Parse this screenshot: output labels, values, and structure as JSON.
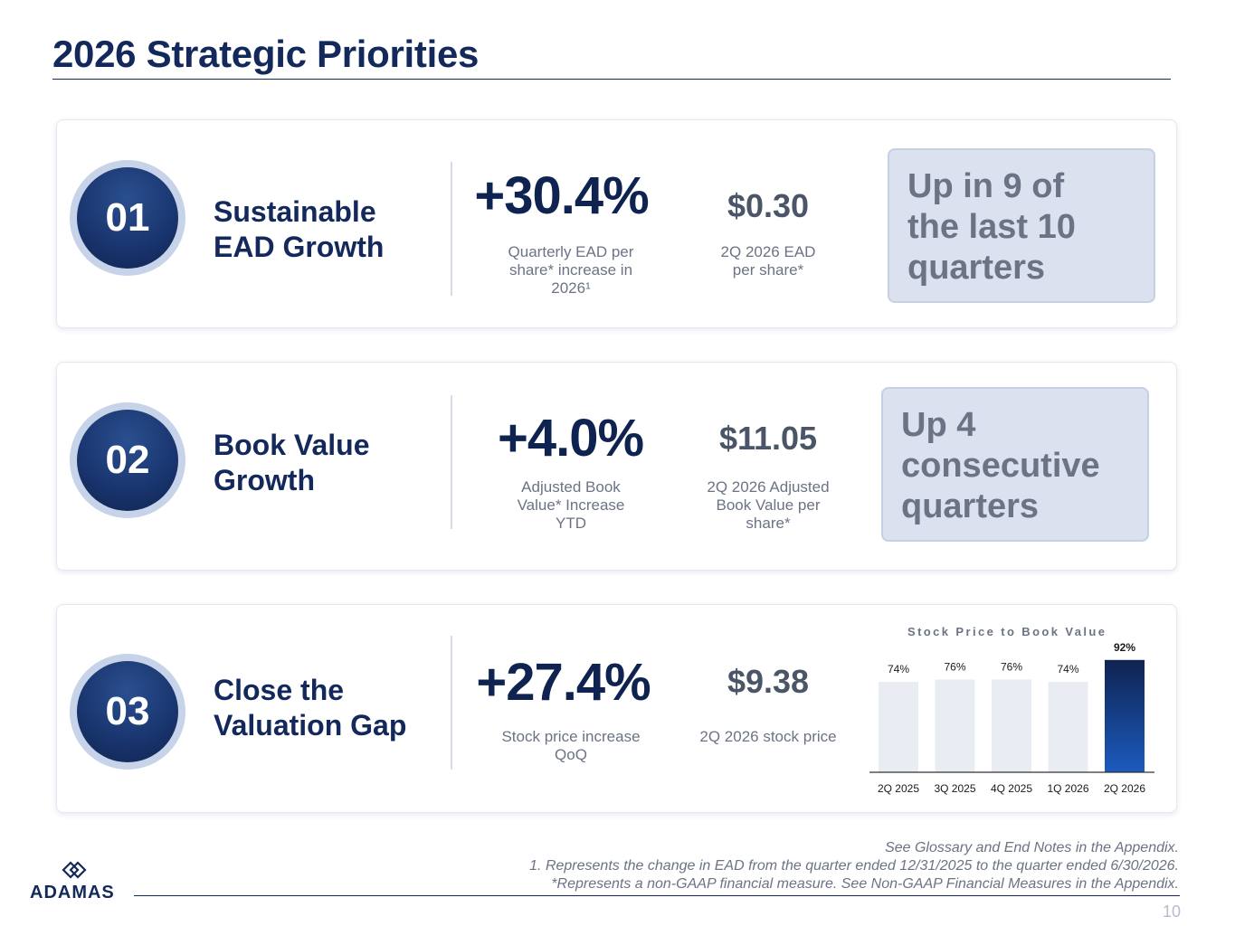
{
  "page": {
    "title": "2026 Strategic Priorities",
    "page_number": "10"
  },
  "priorities": [
    {
      "number": "01",
      "heading": "Sustainable\nEAD Growth",
      "metric1": {
        "value": "+30.4%",
        "caption": "Quarterly EAD per\nshare* increase in\n2026¹"
      },
      "metric2": {
        "value": "$0.30",
        "caption": "2Q 2026 EAD\nper share*"
      },
      "callout": "Up in 9 of\nthe last 10\nquarters"
    },
    {
      "number": "02",
      "heading": "Book Value\nGrowth",
      "metric1": {
        "value": "+4.0%",
        "caption": "Adjusted Book\nValue* Increase\nYTD"
      },
      "metric2": {
        "value": "$11.05",
        "caption": "2Q 2026 Adjusted\nBook Value per\nshare*"
      },
      "callout": "Up 4\nconsecutive\nquarters"
    },
    {
      "number": "03",
      "heading": "Close the\nValuation Gap",
      "metric1": {
        "value": "+27.4%",
        "caption": "Stock price increase\nQoQ"
      },
      "metric2": {
        "value": "$9.38",
        "caption": "2Q 2026 stock price"
      }
    }
  ],
  "chart_data": {
    "type": "bar",
    "title": "Stock Price to Book Value",
    "categories": [
      "2Q 2025",
      "3Q 2025",
      "4Q 2025",
      "1Q 2026",
      "2Q 2026"
    ],
    "values": [
      74,
      76,
      76,
      74,
      92
    ],
    "labels": [
      "74%",
      "76%",
      "76%",
      "74%",
      "92%"
    ],
    "highlight_index": 4,
    "colors": {
      "bar": "#e9edf3",
      "highlight_top": "#0f2350",
      "highlight_bottom": "#1c5bbf"
    }
  },
  "footnotes": {
    "line1": "See Glossary and End Notes in the Appendix.",
    "line2": "1. Represents the change in EAD from the quarter ended 12/31/2025 to the quarter ended 6/30/2026.",
    "line3": "*Represents a non-GAAP financial measure. See Non-GAAP Financial Measures in the Appendix."
  },
  "logo": {
    "text": "ADAMAS",
    "icon": "adamas-logo-icon"
  }
}
